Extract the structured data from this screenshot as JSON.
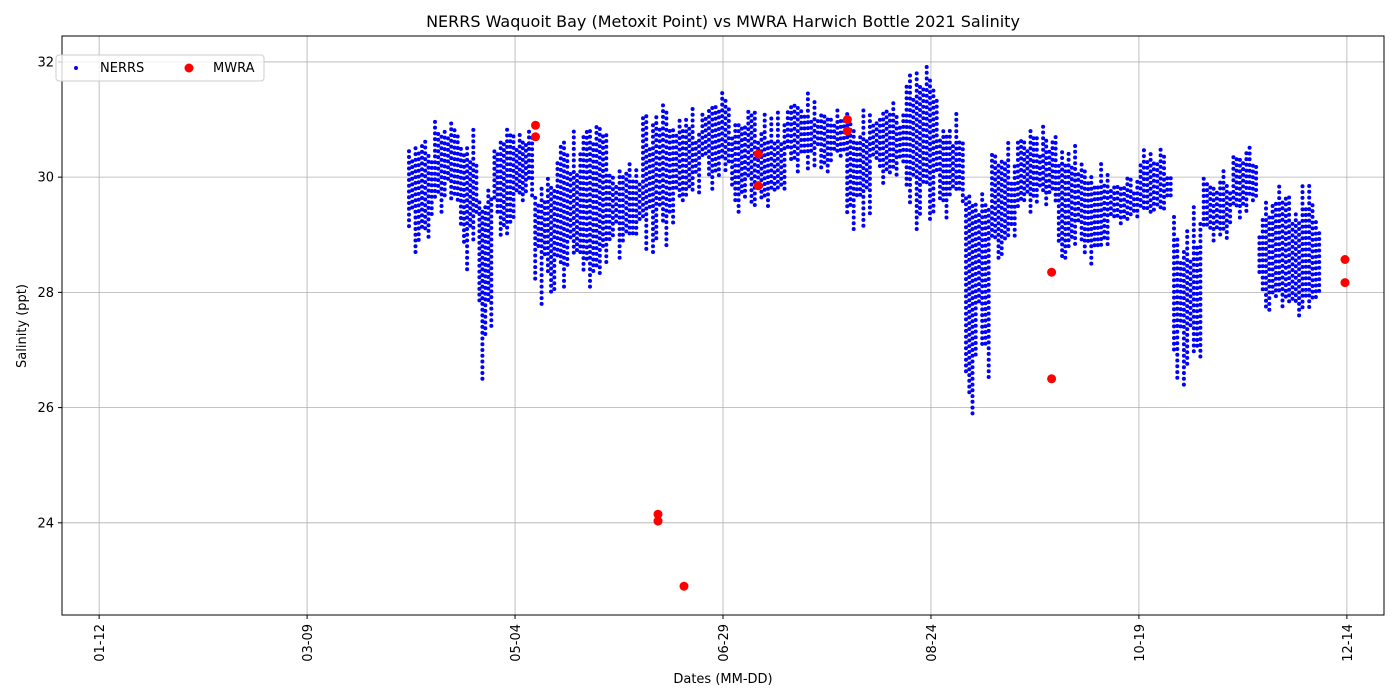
{
  "chart_data": {
    "type": "scatter",
    "title": "NERRS Waquoit Bay (Metoxit Point) vs MWRA Harwich Bottle 2021 Salinity",
    "xlabel": "Dates (MM-DD)",
    "ylabel": "Salinity (ppt)",
    "x_axis": {
      "kind": "date",
      "year": 2021,
      "range": [
        "2021-01-02",
        "2021-12-24"
      ],
      "tick_labels": [
        "01-12",
        "03-09",
        "05-04",
        "06-29",
        "08-24",
        "10-19",
        "12-14"
      ]
    },
    "y_axis": {
      "range": [
        22.4,
        32.45
      ],
      "tick_labels": [
        "24",
        "26",
        "28",
        "30",
        "32"
      ]
    },
    "grid": true,
    "legend": {
      "placement": "top-left",
      "columns": 2
    },
    "series": [
      {
        "name": "NERRS",
        "color": "#0000ff",
        "marker": "small-dot",
        "data_span": [
          "2021-04-05",
          "2021-12-06"
        ],
        "bands": [
          {
            "from": "2021-04-05",
            "to": "2021-04-11",
            "low": 28.7,
            "high": 30.7,
            "mean": 30.0
          },
          {
            "from": "2021-04-12",
            "to": "2021-04-18",
            "low": 29.4,
            "high": 31.0,
            "mean": 30.4
          },
          {
            "from": "2021-04-19",
            "to": "2021-04-23",
            "low": 28.4,
            "high": 30.9,
            "mean": 29.9
          },
          {
            "from": "2021-04-24",
            "to": "2021-04-27",
            "low": 26.5,
            "high": 29.8,
            "mean": 29.2
          },
          {
            "from": "2021-04-28",
            "to": "2021-05-03",
            "low": 29.0,
            "high": 30.9,
            "mean": 30.1
          },
          {
            "from": "2021-05-04",
            "to": "2021-05-08",
            "low": 29.6,
            "high": 30.8,
            "mean": 30.2
          },
          {
            "from": "2021-05-09",
            "to": "2021-05-14",
            "low": 27.8,
            "high": 30.0,
            "mean": 29.3
          },
          {
            "from": "2021-05-15",
            "to": "2021-05-21",
            "low": 28.1,
            "high": 30.8,
            "mean": 29.4
          },
          {
            "from": "2021-05-22",
            "to": "2021-05-28",
            "low": 28.1,
            "high": 30.9,
            "mean": 30.3
          },
          {
            "from": "2021-05-29",
            "to": "2021-06-06",
            "low": 28.6,
            "high": 30.3,
            "mean": 29.6
          },
          {
            "from": "2021-06-07",
            "to": "2021-06-15",
            "low": 28.7,
            "high": 31.3,
            "mean": 30.1
          },
          {
            "from": "2021-06-16",
            "to": "2021-06-22",
            "low": 29.6,
            "high": 31.2,
            "mean": 30.3
          },
          {
            "from": "2021-06-23",
            "to": "2021-06-30",
            "low": 29.8,
            "high": 31.5,
            "mean": 30.8
          },
          {
            "from": "2021-07-01",
            "to": "2021-07-07",
            "low": 29.4,
            "high": 31.2,
            "mean": 30.3
          },
          {
            "from": "2021-07-08",
            "to": "2021-07-15",
            "low": 29.5,
            "high": 31.2,
            "mean": 30.2
          },
          {
            "from": "2021-07-16",
            "to": "2021-07-24",
            "low": 30.1,
            "high": 31.5,
            "mean": 30.8
          },
          {
            "from": "2021-07-25",
            "to": "2021-07-31",
            "low": 30.1,
            "high": 31.2,
            "mean": 30.8
          },
          {
            "from": "2021-08-01",
            "to": "2021-08-07",
            "low": 29.1,
            "high": 31.2,
            "mean": 30.2
          },
          {
            "from": "2021-08-08",
            "to": "2021-08-16",
            "low": 29.9,
            "high": 31.3,
            "mean": 30.7
          },
          {
            "from": "2021-08-17",
            "to": "2021-08-25",
            "low": 29.1,
            "high": 32.0,
            "mean": 30.9
          },
          {
            "from": "2021-08-26",
            "to": "2021-09-01",
            "low": 29.3,
            "high": 31.1,
            "mean": 30.2
          },
          {
            "from": "2021-09-02",
            "to": "2021-09-08",
            "low": 25.9,
            "high": 29.8,
            "mean": 29.1
          },
          {
            "from": "2021-09-09",
            "to": "2021-09-15",
            "low": 28.6,
            "high": 30.6,
            "mean": 29.6
          },
          {
            "from": "2021-09-16",
            "to": "2021-09-26",
            "low": 29.4,
            "high": 30.9,
            "mean": 30.1
          },
          {
            "from": "2021-09-27",
            "to": "2021-10-03",
            "low": 28.6,
            "high": 30.6,
            "mean": 29.6
          },
          {
            "from": "2021-10-04",
            "to": "2021-10-10",
            "low": 28.5,
            "high": 30.3,
            "mean": 29.3
          },
          {
            "from": "2021-10-11",
            "to": "2021-10-18",
            "low": 29.2,
            "high": 30.0,
            "mean": 29.6
          },
          {
            "from": "2021-10-19",
            "to": "2021-10-27",
            "low": 29.4,
            "high": 30.5,
            "mean": 29.8
          },
          {
            "from": "2021-10-28",
            "to": "2021-11-04",
            "low": 26.4,
            "high": 29.5,
            "mean": 28.1
          },
          {
            "from": "2021-11-05",
            "to": "2021-11-12",
            "low": 28.9,
            "high": 30.2,
            "mean": 29.5
          },
          {
            "from": "2021-11-13",
            "to": "2021-11-19",
            "low": 29.3,
            "high": 30.6,
            "mean": 29.9
          },
          {
            "from": "2021-11-20",
            "to": "2021-11-27",
            "low": 27.7,
            "high": 29.9,
            "mean": 28.6
          },
          {
            "from": "2021-11-28",
            "to": "2021-12-06",
            "low": 27.6,
            "high": 29.9,
            "mean": 28.4
          }
        ]
      },
      {
        "name": "MWRA",
        "color": "#ff0000",
        "marker": "dot",
        "points": [
          {
            "x": "2021-05-09",
            "y": 30.9
          },
          {
            "x": "2021-05-09",
            "y": 30.7
          },
          {
            "x": "2021-06-11",
            "y": 24.15
          },
          {
            "x": "2021-06-11",
            "y": 24.03
          },
          {
            "x": "2021-06-18",
            "y": 22.9
          },
          {
            "x": "2021-07-08",
            "y": 30.4
          },
          {
            "x": "2021-07-08",
            "y": 29.85
          },
          {
            "x": "2021-08-01",
            "y": 31.0
          },
          {
            "x": "2021-08-01",
            "y": 30.8
          },
          {
            "x": "2021-09-25",
            "y": 28.35
          },
          {
            "x": "2021-09-25",
            "y": 26.5
          },
          {
            "x": "2021-12-13",
            "y": 28.57
          },
          {
            "x": "2021-12-13",
            "y": 28.17
          }
        ]
      }
    ]
  }
}
